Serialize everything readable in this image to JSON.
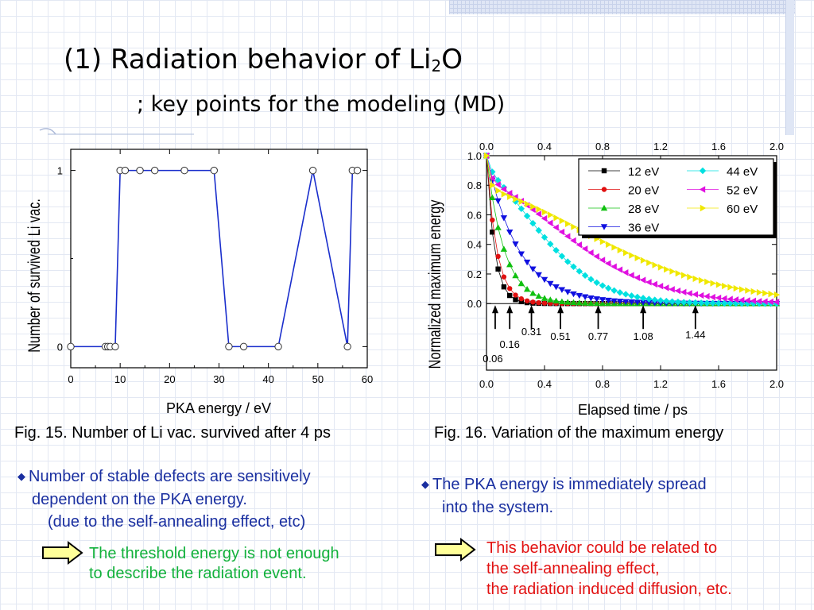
{
  "title": {
    "prefix": "(1) Radiation behavior of Li",
    "sub": "2",
    "suffix": "O",
    "subtitle": "; key points for the modeling (MD)"
  },
  "chart_data": [
    {
      "type": "line",
      "xlabel": "PKA energy  /  eV",
      "ylabel": "Number of survived Li vac.",
      "xlim": [
        0,
        60
      ],
      "ylim": [
        -0.12,
        1.12
      ],
      "xticks": [
        "0",
        "10",
        "20",
        "30",
        "40",
        "50",
        "60"
      ],
      "yticks": [
        "0",
        "1"
      ],
      "x": [
        0,
        7,
        7.5,
        8,
        9,
        10,
        11,
        14,
        17,
        23,
        29,
        32,
        35,
        42,
        49,
        56,
        57,
        58
      ],
      "y": [
        0,
        0,
        0,
        0,
        0,
        1,
        1,
        1,
        1,
        1,
        1,
        0,
        0,
        0,
        1,
        0,
        1,
        1
      ],
      "color": "#1a2ecc",
      "caption": "Fig. 15.   Number of Li vac. survived after 4 ps"
    },
    {
      "type": "line",
      "xlabel": "Elapsed time  /  ps",
      "ylabel": "Normalized maximum energy",
      "xlim": [
        0,
        2.0
      ],
      "ylim": [
        -0.45,
        1.0
      ],
      "xticks": [
        "0.0",
        "0.4",
        "0.8",
        "1.2",
        "1.6",
        "2.0"
      ],
      "yticks": [
        "0.0",
        "0.2",
        "0.4",
        "0.6",
        "0.8",
        "1.0"
      ],
      "legend": "top-right",
      "series": [
        {
          "name": "12 eV",
          "color": "#000000",
          "marker": "square",
          "decay": 0.055
        },
        {
          "name": "20 eV",
          "color": "#e01010",
          "marker": "circle",
          "decay": 0.07
        },
        {
          "name": "28 eV",
          "color": "#10c010",
          "marker": "triangle-up",
          "decay": 0.12
        },
        {
          "name": "36 eV",
          "color": "#1010e0",
          "marker": "triangle-down",
          "decay": 0.22
        },
        {
          "name": "44 eV",
          "color": "#00e0e0",
          "marker": "diamond",
          "decay": 0.33
        },
        {
          "name": "52 eV",
          "color": "#e010e0",
          "marker": "triangle-left",
          "decay": 0.5
        },
        {
          "name": "60 eV",
          "color": "#f0e800",
          "marker": "triangle-right",
          "decay": 0.7
        }
      ],
      "annotations": [
        {
          "label": "0.06",
          "x": 0.06
        },
        {
          "label": "0.16",
          "x": 0.16
        },
        {
          "label": "0.31",
          "x": 0.31
        },
        {
          "label": "0.51",
          "x": 0.51
        },
        {
          "label": "0.77",
          "x": 0.77
        },
        {
          "label": "1.08",
          "x": 1.08
        },
        {
          "label": "1.44",
          "x": 1.44
        }
      ],
      "caption": "Fig. 16.   Variation of the maximum energy"
    }
  ],
  "left_text": {
    "bullet_line1": "Number of stable defects are sensitively",
    "bullet_line2": "dependent on the PKA energy.",
    "bullet_line3": "(due to the self-annealing effect, etc)",
    "green_line1": "The threshold energy is not enough",
    "green_line2": "to describe the radiation event."
  },
  "right_text": {
    "bullet_line1": "The PKA energy is immediately spread",
    "bullet_line2": "into the system.",
    "red_line1": "This behavior could be related to",
    "red_line2": "the self-annealing effect,",
    "red_line3": "the radiation induced diffusion, etc."
  },
  "colors": {
    "bullet_blue": "#1a2fa0",
    "green": "#13b13c",
    "red": "#e21212",
    "arrow_fill": "#ffff99"
  },
  "icons": [
    "diamond-bullet-icon",
    "right-arrow-icon"
  ]
}
